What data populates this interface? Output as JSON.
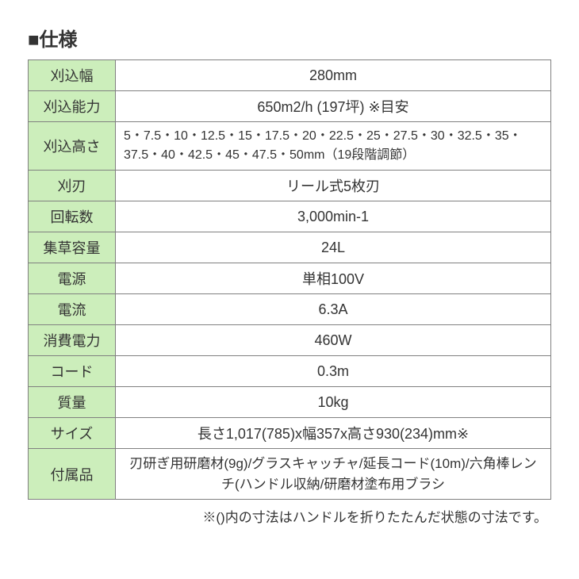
{
  "title": "■仕様",
  "rows": [
    {
      "label": "刈込幅",
      "value": "280mm",
      "class": ""
    },
    {
      "label": "刈込能力",
      "value": "650m2/h (197坪) ※目安",
      "class": ""
    },
    {
      "label": "刈込高さ",
      "value": "5・7.5・10・12.5・15・17.5・20・22.5・25・27.5・30・32.5・35・37.5・40・42.5・45・47.5・50mm（19段階調節）",
      "class": "left"
    },
    {
      "label": "刈刃",
      "value": "リール式5枚刃",
      "class": ""
    },
    {
      "label": "回転数",
      "value": "3,000min-1",
      "class": ""
    },
    {
      "label": "集草容量",
      "value": "24L",
      "class": ""
    },
    {
      "label": "電源",
      "value": "単相100V",
      "class": ""
    },
    {
      "label": "電流",
      "value": "6.3A",
      "class": ""
    },
    {
      "label": "消費電力",
      "value": "460W",
      "class": ""
    },
    {
      "label": "コード",
      "value": "0.3m",
      "class": ""
    },
    {
      "label": "質量",
      "value": "10kg",
      "class": ""
    },
    {
      "label": "サイズ",
      "value": "長さ1,017(785)x幅357x高さ930(234)mm※",
      "class": ""
    },
    {
      "label": "付属品",
      "value": "刃研ぎ用研磨材(9g)/グラスキャッチャ/延長コード(10m)/六角棒レンチ(ハンドル収納/研磨材塗布用ブラシ",
      "class": "multi"
    }
  ],
  "note": "※()内の寸法はハンドルを折りたたんだ状態の寸法です。",
  "colors": {
    "label_bg": "#cceebb",
    "value_bg": "#ffffff",
    "border": "#808080",
    "text": "#333333"
  }
}
